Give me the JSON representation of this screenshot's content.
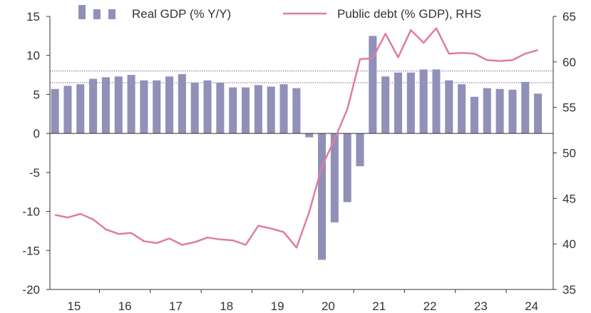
{
  "chart_data": {
    "type": "bar",
    "legend": {
      "placement": "top",
      "bar_label": "Real GDP (% Y/Y)",
      "line_label": "Public debt (% GDP), RHS"
    },
    "colors": {
      "bar": "#9190B8",
      "line": "#E07C9E",
      "reference_lines": "#8A5FA6",
      "axis": "#333333"
    },
    "x_tick_labels": [
      "15",
      "16",
      "17",
      "18",
      "19",
      "20",
      "21",
      "22",
      "23",
      "24"
    ],
    "y_left": {
      "range": [
        -20,
        15
      ],
      "ticks": [
        -20,
        -15,
        -10,
        -5,
        0,
        5,
        10,
        15
      ]
    },
    "y_right": {
      "range": [
        35,
        65
      ],
      "ticks": [
        35,
        40,
        45,
        50,
        55,
        60,
        65
      ]
    },
    "reference_lines_left": [
      8.0,
      6.5
    ],
    "x_range": [
      2014.9,
      2024.8
    ],
    "series": [
      {
        "name": "Real GDP (% Y/Y)",
        "kind": "bar",
        "axis": "left",
        "x": [
          2015.0,
          2015.25,
          2015.5,
          2015.75,
          2016.0,
          2016.25,
          2016.5,
          2016.75,
          2017.0,
          2017.25,
          2017.5,
          2017.75,
          2018.0,
          2018.25,
          2018.5,
          2018.75,
          2019.0,
          2019.25,
          2019.5,
          2019.75,
          2020.0,
          2020.25,
          2020.5,
          2020.75,
          2021.0,
          2021.25,
          2021.5,
          2021.75,
          2022.0,
          2022.25,
          2022.5,
          2022.75,
          2023.0,
          2023.25,
          2023.5,
          2023.75,
          2024.0,
          2024.25,
          2024.5
        ],
        "values": [
          5.7,
          6.1,
          6.3,
          7.0,
          7.2,
          7.3,
          7.5,
          6.8,
          6.8,
          7.3,
          7.6,
          6.5,
          6.8,
          6.5,
          5.9,
          5.9,
          6.2,
          6.0,
          6.3,
          5.8,
          -0.5,
          -16.2,
          -11.4,
          -8.8,
          -4.2,
          12.5,
          7.3,
          7.8,
          7.8,
          8.2,
          8.2,
          6.8,
          6.3,
          4.7,
          5.8,
          5.7,
          5.6,
          6.6,
          5.1
        ]
      },
      {
        "name": "Public debt (% GDP), RHS",
        "kind": "line",
        "axis": "right",
        "x": [
          2015.0,
          2015.25,
          2015.5,
          2015.75,
          2016.0,
          2016.25,
          2016.5,
          2016.75,
          2017.0,
          2017.25,
          2017.5,
          2017.75,
          2018.0,
          2018.25,
          2018.5,
          2018.75,
          2019.0,
          2019.25,
          2019.5,
          2019.75,
          2020.0,
          2020.25,
          2020.5,
          2020.75,
          2021.0,
          2021.25,
          2021.5,
          2021.75,
          2022.0,
          2022.25,
          2022.5,
          2022.75,
          2023.0,
          2023.25,
          2023.5,
          2023.75,
          2024.0,
          2024.25,
          2024.5
        ],
        "values": [
          43.2,
          42.9,
          43.3,
          42.7,
          41.6,
          41.1,
          41.2,
          40.3,
          40.1,
          40.6,
          39.9,
          40.2,
          40.7,
          40.5,
          40.4,
          39.9,
          42.0,
          41.7,
          41.3,
          39.6,
          43.5,
          48.5,
          51.5,
          54.8,
          60.3,
          60.4,
          63.1,
          60.5,
          63.5,
          62.1,
          63.7,
          60.9,
          61.0,
          60.9,
          60.2,
          60.1,
          60.2,
          60.9,
          61.3
        ]
      }
    ]
  }
}
